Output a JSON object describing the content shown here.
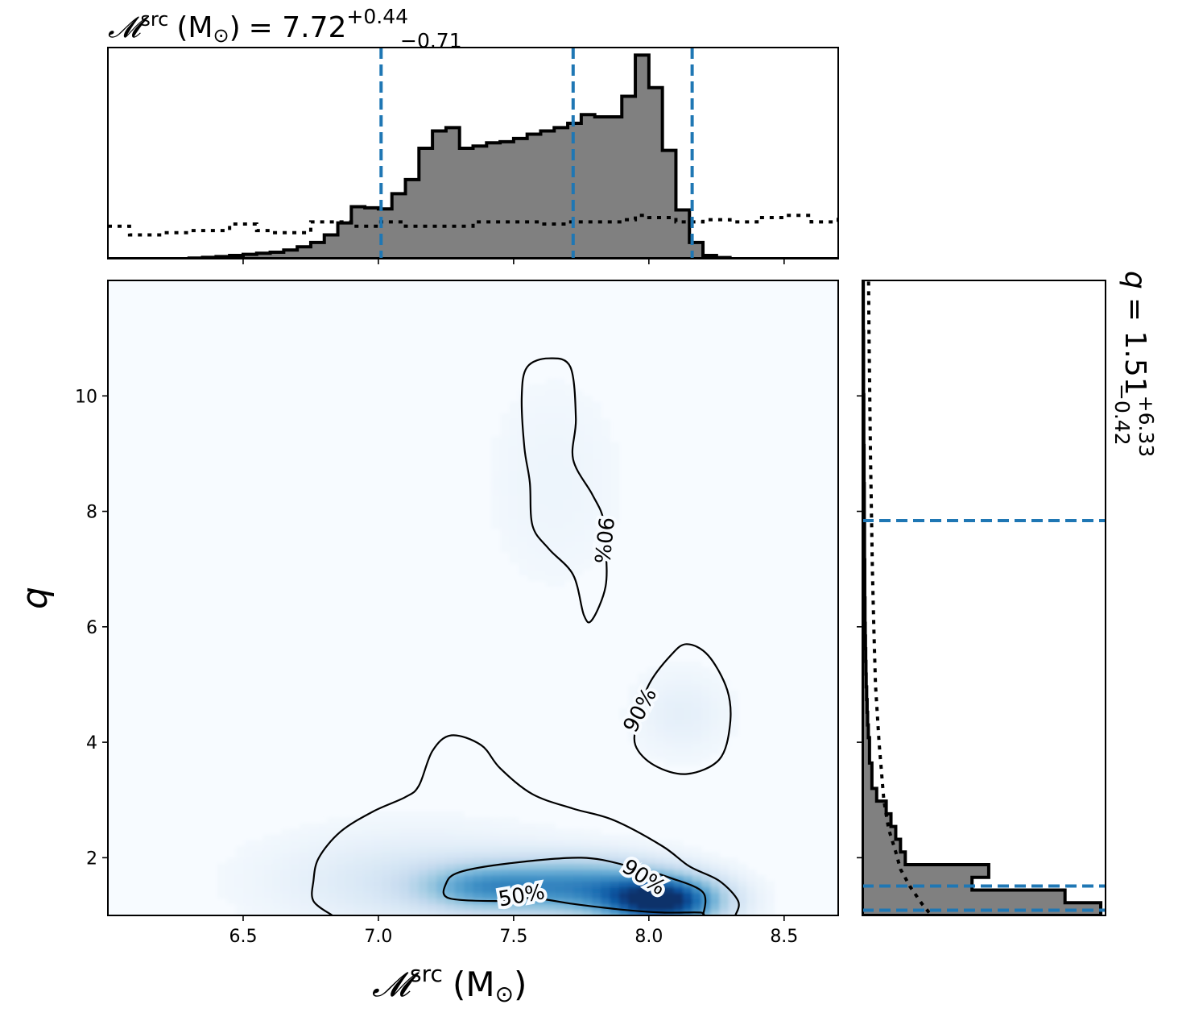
{
  "chart_data": [
    {
      "panel": "top-marginal",
      "type": "histogram",
      "title": {
        "symbol": "𝓜",
        "sup": "src",
        "unit": "(M",
        "sun": "⊙",
        "close": ")",
        "equals": "= 7.72",
        "upper": "+0.44",
        "lower": "−0.71"
      },
      "xlim": [
        6.0,
        8.7
      ],
      "quantile_lines": [
        7.01,
        7.72,
        8.16
      ],
      "histogram": {
        "bin_edges": [
          6.0,
          6.05,
          6.1,
          6.15,
          6.2,
          6.25,
          6.3,
          6.35,
          6.4,
          6.45,
          6.5,
          6.55,
          6.6,
          6.65,
          6.7,
          6.75,
          6.8,
          6.85,
          6.9,
          6.95,
          7.0,
          7.05,
          7.1,
          7.15,
          7.2,
          7.25,
          7.3,
          7.35,
          7.4,
          7.45,
          7.5,
          7.55,
          7.6,
          7.65,
          7.7,
          7.75,
          7.8,
          7.85,
          7.9,
          7.95,
          8.0,
          8.05,
          8.1,
          8.15,
          8.2,
          8.25,
          8.3,
          8.35,
          8.4,
          8.45,
          8.5,
          8.55,
          8.6,
          8.65,
          8.7
        ],
        "values": [
          0,
          0,
          0,
          0,
          0,
          0,
          0.3,
          0.6,
          1.0,
          1.5,
          2.0,
          2.5,
          3.0,
          4.0,
          5.5,
          7.5,
          11.0,
          16.5,
          24.0,
          23.5,
          23.0,
          30.0,
          36.5,
          51.0,
          59.0,
          60.5,
          51.0,
          52.0,
          53.5,
          54.0,
          55.5,
          57.5,
          59.0,
          60.5,
          62.5,
          66.5,
          65.5,
          65.5,
          75.0,
          94.0,
          79.0,
          50.0,
          22.5,
          7.5,
          1.5,
          0.5,
          0,
          0,
          0,
          0,
          0,
          0,
          0,
          0
        ]
      },
      "prior": {
        "x": [
          6.0,
          6.08,
          6.2,
          6.3,
          6.45,
          6.55,
          6.6,
          6.75,
          6.9,
          7.0,
          7.1,
          7.2,
          7.35,
          7.5,
          7.6,
          7.7,
          7.8,
          7.9,
          7.95,
          8.0,
          8.1,
          8.2,
          8.3,
          8.4,
          8.5,
          8.6,
          8.7
        ],
        "y": [
          15,
          11,
          12,
          13,
          16,
          13,
          12,
          17,
          15,
          17,
          15,
          15,
          17,
          17,
          16,
          17,
          17,
          18,
          20,
          19,
          17,
          18,
          17,
          19,
          20,
          17,
          19
        ]
      }
    },
    {
      "panel": "main-2d",
      "type": "heatmap",
      "xlabel": {
        "symbol": "𝓜",
        "sup": "src",
        "unit": "(M",
        "sun": "⊙",
        "close": ")"
      },
      "ylabel": "q",
      "xlim": [
        6.0,
        8.7
      ],
      "ylim": [
        1.0,
        12.0
      ],
      "xticks": [
        6.5,
        7.0,
        7.5,
        8.0,
        8.5
      ],
      "xtick_labels": [
        "6.5",
        "7.0",
        "7.5",
        "8.0",
        "8.5"
      ],
      "yticks": [
        2,
        4,
        6,
        8,
        10
      ],
      "ytick_labels": [
        "2",
        "4",
        "6",
        "8",
        "10"
      ],
      "colormap": "Blues",
      "density_blobs": [
        {
          "x": 8.05,
          "y": 1.25,
          "sx": 0.14,
          "sy": 0.28,
          "w": 1.0
        },
        {
          "x": 7.75,
          "y": 1.5,
          "sx": 0.22,
          "sy": 0.32,
          "w": 0.55
        },
        {
          "x": 7.38,
          "y": 1.5,
          "sx": 0.16,
          "sy": 0.26,
          "w": 0.38
        },
        {
          "x": 7.15,
          "y": 1.6,
          "sx": 0.35,
          "sy": 0.55,
          "w": 0.12
        },
        {
          "x": 8.12,
          "y": 4.5,
          "sx": 0.12,
          "sy": 0.5,
          "w": 0.06
        },
        {
          "x": 7.65,
          "y": 8.5,
          "sx": 0.18,
          "sy": 1.3,
          "w": 0.03
        }
      ],
      "contours": [
        {
          "label": "90%",
          "points": [
            [
              6.83,
              1.0
            ],
            [
              6.76,
              1.25
            ],
            [
              6.76,
              1.6
            ],
            [
              6.78,
              2.0
            ],
            [
              6.86,
              2.45
            ],
            [
              6.98,
              2.8
            ],
            [
              7.1,
              3.05
            ],
            [
              7.15,
              3.25
            ],
            [
              7.2,
              3.85
            ],
            [
              7.27,
              4.12
            ],
            [
              7.38,
              3.95
            ],
            [
              7.45,
              3.55
            ],
            [
              7.57,
              3.1
            ],
            [
              7.72,
              2.85
            ],
            [
              7.87,
              2.65
            ],
            [
              8.05,
              2.2
            ],
            [
              8.15,
              1.85
            ],
            [
              8.26,
              1.6
            ],
            [
              8.33,
              1.25
            ],
            [
              8.32,
              1.0
            ]
          ],
          "label_at": [
            7.98,
            1.65
          ],
          "label_angle": 33
        },
        {
          "label": "50%",
          "points": [
            [
              7.57,
              1.3
            ],
            [
              7.44,
              1.25
            ],
            [
              7.26,
              1.3
            ],
            [
              7.25,
              1.55
            ],
            [
              7.3,
              1.75
            ],
            [
              7.48,
              1.9
            ],
            [
              7.75,
              2.0
            ],
            [
              7.93,
              1.85
            ],
            [
              8.08,
              1.65
            ],
            [
              8.2,
              1.4
            ],
            [
              8.2,
              1.0
            ],
            [
              8.19,
              1.05
            ],
            [
              8.05,
              1.05
            ],
            [
              7.9,
              1.1
            ],
            [
              7.72,
              1.2
            ]
          ],
          "label_at": [
            7.53,
            1.33
          ],
          "label_angle": -10,
          "closed": true
        },
        {
          "label": "90%",
          "points": [
            [
              8.0,
              5.0
            ],
            [
              8.08,
              5.5
            ],
            [
              8.14,
              5.7
            ],
            [
              8.22,
              5.5
            ],
            [
              8.29,
              4.9
            ],
            [
              8.3,
              4.3
            ],
            [
              8.26,
              3.7
            ],
            [
              8.14,
              3.45
            ],
            [
              8.02,
              3.6
            ],
            [
              7.95,
              3.95
            ],
            [
              7.96,
              4.4
            ]
          ],
          "label_at": [
            7.97,
            4.55
          ],
          "label_angle": -62,
          "closed": true
        },
        {
          "label": "90%",
          "points": [
            [
              7.53,
              10.0
            ],
            [
              7.55,
              10.5
            ],
            [
              7.63,
              10.65
            ],
            [
              7.71,
              10.5
            ],
            [
              7.73,
              9.6
            ],
            [
              7.72,
              8.9
            ],
            [
              7.79,
              8.3
            ],
            [
              7.83,
              7.9
            ],
            [
              7.84,
              7.4
            ],
            [
              7.84,
              6.7
            ],
            [
              7.79,
              6.12
            ],
            [
              7.76,
              6.2
            ],
            [
              7.72,
              6.9
            ],
            [
              7.63,
              7.35
            ],
            [
              7.57,
              7.75
            ],
            [
              7.56,
              8.5
            ],
            [
              7.54,
              9.1
            ]
          ],
          "label_at": [
            7.83,
            7.5
          ],
          "label_angle": 96,
          "closed": true
        }
      ]
    },
    {
      "panel": "right-marginal",
      "type": "histogram",
      "orientation": "horizontal",
      "title": {
        "symbol": "q",
        "equals": "= 1.51",
        "upper": "+6.33",
        "lower": "−0.42"
      },
      "ylim": [
        1.0,
        12.0
      ],
      "quantile_lines": [
        1.09,
        1.51,
        7.84
      ],
      "histogram": {
        "bin_edges": [
          1.0,
          1.22,
          1.44,
          1.66,
          1.88,
          2.1,
          2.32,
          2.54,
          2.76,
          2.98,
          3.2,
          3.42,
          3.64,
          3.86,
          4.08,
          4.3,
          4.52,
          4.74,
          4.96,
          5.18,
          5.4,
          5.62,
          5.84,
          6.06,
          6.28,
          6.5,
          6.72,
          6.94,
          7.16,
          7.38,
          7.6,
          7.82,
          8.04,
          8.26,
          8.48,
          8.7,
          8.92,
          9.14,
          9.36,
          9.58,
          9.8,
          10.02,
          10.24,
          10.46,
          10.68,
          10.9,
          11.12,
          11.34,
          11.56,
          11.78,
          12.0
        ],
        "values": [
          100,
          85,
          46,
          53,
          18,
          16,
          14,
          12,
          10,
          6,
          4,
          4,
          3,
          3,
          2.5,
          2.2,
          2,
          1.8,
          1.6,
          1.5,
          1.4,
          1.3,
          1.2,
          1.1,
          1.1,
          1,
          1,
          1,
          0.9,
          0.9,
          0.9,
          0.8,
          0.8,
          0.8,
          0.7,
          0.7,
          0.7,
          0.6,
          0.6,
          0.6,
          0.6,
          0.5,
          0.5,
          0.5,
          0.5,
          0.5,
          0.4,
          0.4,
          0.4,
          0.4
        ]
      },
      "prior": {
        "y": [
          1.05,
          1.2,
          1.5,
          1.8,
          2.1,
          2.5,
          3.0,
          4.0,
          5.0,
          6.0,
          7.0,
          8.0,
          9.0,
          10.0,
          11.0,
          12.0
        ],
        "x": [
          28,
          25,
          20,
          16,
          14,
          11,
          9,
          7,
          5.5,
          4.8,
          4.2,
          3.8,
          3.4,
          3.1,
          2.8,
          2.6
        ]
      }
    }
  ]
}
